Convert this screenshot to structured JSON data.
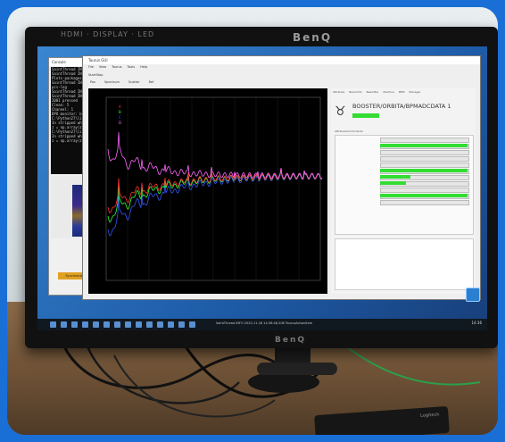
{
  "monitor": {
    "bezel_top_left": "HDMI · DISPLAY · LED",
    "brand": "BenQ",
    "bezel_bottom_left": ""
  },
  "console": {
    "title": "Console",
    "lines": [
      "SaintThread  INFO",
      "SaintThread  INFO",
      "Plots-packages/cad",
      "SaintThread  INFO",
      "pcs-log",
      "SaintThread  INFO",
      "SaintThread  INFO",
      "2001 pressed",
      "Clean: 5",
      "Channel: 1",
      "DPO monitor: booster",
      "C:\\Python27\\lib\\site",
      "In stripped when d",
      "  z = np.array(z)",
      "C:\\Python27\\lib\\site",
      "In stripped when d",
      "  z = np.array(z)"
    ],
    "button_label": "Synchronize"
  },
  "app": {
    "title": "Taurus GUI",
    "menu": [
      "File",
      "View",
      "Taurus",
      "Tools",
      "Help"
    ],
    "toolbar": [
      "Start",
      "Stop"
    ],
    "tabs": [
      "Pos",
      "Spectrum",
      "Scatter",
      "Ref"
    ],
    "panel_tabs": [
      "Attribute",
      "BeamInfo",
      "BeamBar",
      "Machine",
      "BPM",
      "Manager"
    ],
    "device_name": "BOOSTER/ORBITA/BPMADCDATA 1",
    "inner_tabs": [
      "Attributes",
      "Commands"
    ],
    "legend": [
      "A",
      "B",
      "C",
      "D"
    ],
    "series_colors": [
      "#ff3333",
      "#33ff33",
      "#3355ff",
      "#ff66ff"
    ]
  },
  "taskbar": {
    "status_text": "SaintThread   INFO   2020-11-18 14:36:48,208 TaurusActionItem",
    "clock": "14:36"
  },
  "keyboard": {
    "label": "Logitech"
  }
}
